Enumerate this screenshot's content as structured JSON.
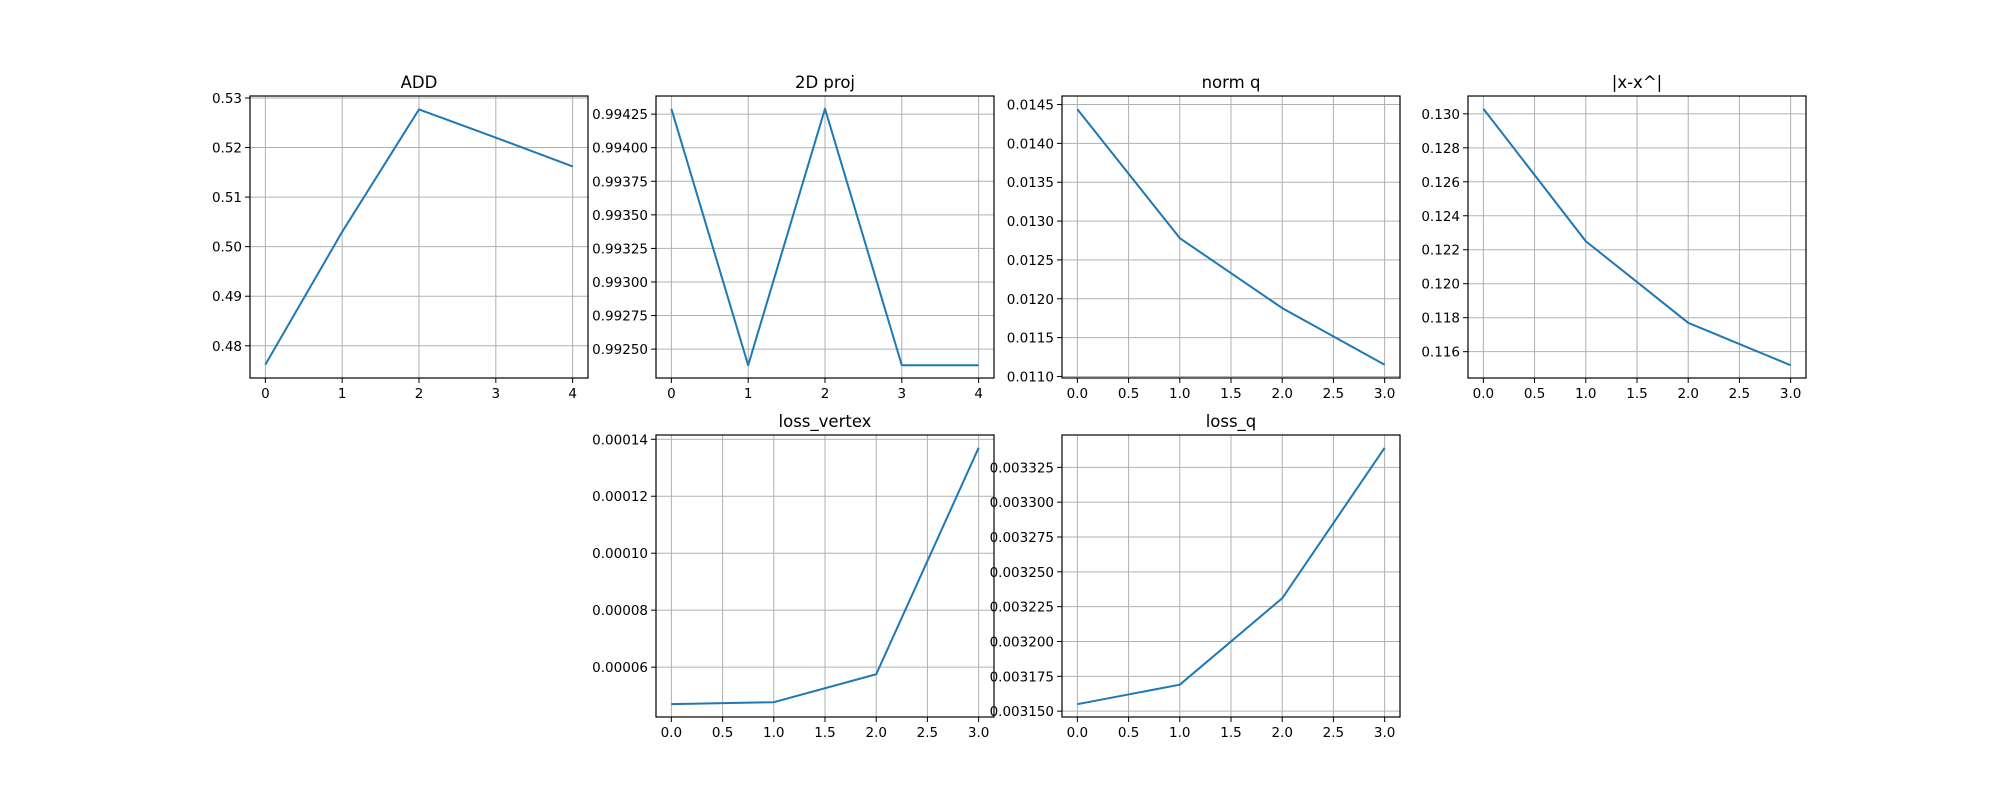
{
  "colors": {
    "line": "#1f77b4",
    "grid": "#b0b0b0",
    "axis": "#000000",
    "background": "#ffffff"
  },
  "chart_data": [
    {
      "type": "line",
      "title": "ADD",
      "xlabel": "",
      "ylabel": "",
      "grid": true,
      "x": [
        0,
        1,
        2,
        3,
        4
      ],
      "y": [
        0.4762,
        0.503,
        0.5277,
        0.522,
        0.5162
      ],
      "xlim": [
        -0.2,
        4.2
      ],
      "ylim": [
        0.4735,
        0.5304
      ],
      "xticks": [
        0,
        1,
        2,
        3,
        4
      ],
      "xtick_labels": [
        "0",
        "1",
        "2",
        "3",
        "4"
      ],
      "yticks": [
        0.48,
        0.49,
        0.5,
        0.51,
        0.52,
        0.53
      ],
      "ytick_labels": [
        "0.48",
        "0.49",
        "0.50",
        "0.51",
        "0.52",
        "0.53"
      ]
    },
    {
      "type": "line",
      "title": "2D proj",
      "xlabel": "",
      "ylabel": "",
      "grid": true,
      "x": [
        0,
        1,
        2,
        3,
        4
      ],
      "y": [
        0.99429,
        0.99238,
        0.99429,
        0.99238,
        0.99238
      ],
      "xlim": [
        -0.2,
        4.2
      ],
      "ylim": [
        0.992285,
        0.994385
      ],
      "xticks": [
        0,
        1,
        2,
        3,
        4
      ],
      "xtick_labels": [
        "0",
        "1",
        "2",
        "3",
        "4"
      ],
      "yticks": [
        0.9925,
        0.99275,
        0.993,
        0.99325,
        0.9935,
        0.99375,
        0.994,
        0.99425
      ],
      "ytick_labels": [
        "0.99250",
        "0.99275",
        "0.99300",
        "0.99325",
        "0.99350",
        "0.99375",
        "0.99400",
        "0.99425"
      ]
    },
    {
      "type": "line",
      "title": "norm q",
      "xlabel": "",
      "ylabel": "",
      "grid": true,
      "x": [
        0,
        1,
        2,
        3
      ],
      "y": [
        0.01444,
        0.01278,
        0.01188,
        0.01115
      ],
      "xlim": [
        -0.15,
        3.15
      ],
      "ylim": [
        0.01098,
        0.01461
      ],
      "xticks": [
        0,
        0.5,
        1,
        1.5,
        2,
        2.5,
        3
      ],
      "xtick_labels": [
        "0.0",
        "0.5",
        "1.0",
        "1.5",
        "2.0",
        "2.5",
        "3.0"
      ],
      "yticks": [
        0.011,
        0.0115,
        0.012,
        0.0125,
        0.013,
        0.0135,
        0.014,
        0.0145
      ],
      "ytick_labels": [
        "0.0110",
        "0.0115",
        "0.0120",
        "0.0125",
        "0.0130",
        "0.0135",
        "0.0140",
        "0.0145"
      ]
    },
    {
      "type": "line",
      "title": "|x-x^|",
      "xlabel": "",
      "ylabel": "",
      "grid": true,
      "x": [
        0,
        1,
        2,
        3
      ],
      "y": [
        0.1303,
        0.1225,
        0.1177,
        0.1152
      ],
      "xlim": [
        -0.15,
        3.15
      ],
      "ylim": [
        0.11445,
        0.13105
      ],
      "xticks": [
        0,
        0.5,
        1,
        1.5,
        2,
        2.5,
        3
      ],
      "xtick_labels": [
        "0.0",
        "0.5",
        "1.0",
        "1.5",
        "2.0",
        "2.5",
        "3.0"
      ],
      "yticks": [
        0.116,
        0.118,
        0.12,
        0.122,
        0.124,
        0.126,
        0.128,
        0.13
      ],
      "ytick_labels": [
        "0.116",
        "0.118",
        "0.120",
        "0.122",
        "0.124",
        "0.126",
        "0.128",
        "0.130"
      ]
    },
    {
      "type": "line",
      "title": "loss_vertex",
      "xlabel": "",
      "ylabel": "",
      "grid": true,
      "x": [
        0,
        1,
        2,
        3
      ],
      "y": [
        4.7e-05,
        4.77e-05,
        5.75e-05,
        0.000137
      ],
      "xlim": [
        -0.15,
        3.15
      ],
      "ylim": [
        4.25e-05,
        0.0001415
      ],
      "xticks": [
        0,
        0.5,
        1,
        1.5,
        2,
        2.5,
        3
      ],
      "xtick_labels": [
        "0.0",
        "0.5",
        "1.0",
        "1.5",
        "2.0",
        "2.5",
        "3.0"
      ],
      "yticks": [
        6e-05,
        8e-05,
        0.0001,
        0.00012,
        0.00014
      ],
      "ytick_labels": [
        "0.00006",
        "0.00008",
        "0.00010",
        "0.00012",
        "0.00014"
      ]
    },
    {
      "type": "line",
      "title": "loss_q",
      "xlabel": "",
      "ylabel": "",
      "grid": true,
      "x": [
        0,
        1,
        2,
        3
      ],
      "y": [
        0.003155,
        0.003169,
        0.003231,
        0.003339
      ],
      "xlim": [
        -0.15,
        3.15
      ],
      "ylim": [
        0.0031458,
        0.0033482
      ],
      "xticks": [
        0,
        0.5,
        1,
        1.5,
        2,
        2.5,
        3
      ],
      "xtick_labels": [
        "0.0",
        "0.5",
        "1.0",
        "1.5",
        "2.0",
        "2.5",
        "3.0"
      ],
      "yticks": [
        0.00315,
        0.003175,
        0.0032,
        0.003225,
        0.00325,
        0.003275,
        0.0033,
        0.003325
      ],
      "ytick_labels": [
        "0.003150",
        "0.003175",
        "0.003200",
        "0.003225",
        "0.003250",
        "0.003275",
        "0.003300",
        "0.003325"
      ]
    }
  ]
}
